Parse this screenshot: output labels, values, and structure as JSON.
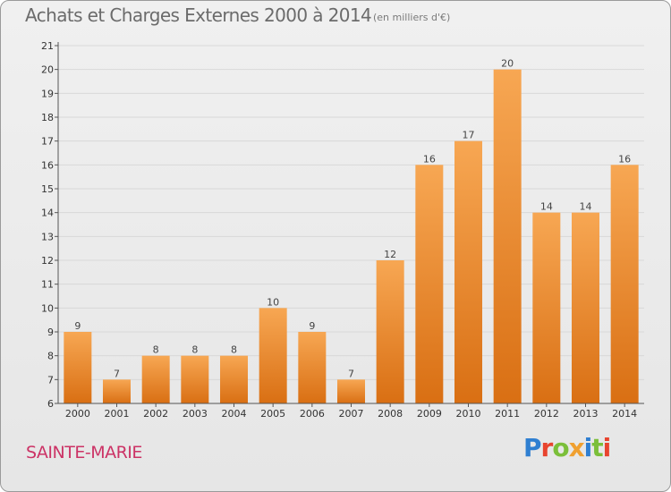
{
  "header": {
    "title": "Achats et Charges Externes 2000 à 2014",
    "unit": "(en milliers d'€)"
  },
  "footer": {
    "commune": "SAINTE-MARIE",
    "logo": "Proxiti"
  },
  "colors": {
    "bar_light": "#f7a753",
    "bar_dark": "#d96f13",
    "grid": "#d8d8d8",
    "title": "#6b6b6b",
    "commune": "#cc3366"
  },
  "chart_data": {
    "type": "bar",
    "categories": [
      "2000",
      "2001",
      "2002",
      "2003",
      "2004",
      "2005",
      "2006",
      "2007",
      "2008",
      "2009",
      "2010",
      "2011",
      "2012",
      "2013",
      "2014"
    ],
    "values": [
      9,
      7,
      8,
      8,
      8,
      10,
      9,
      7,
      12,
      16,
      17,
      20,
      14,
      14,
      16
    ],
    "ylim": [
      6,
      21
    ],
    "yticks": [
      6,
      7,
      8,
      9,
      10,
      11,
      12,
      13,
      14,
      15,
      16,
      17,
      18,
      19,
      20,
      21
    ],
    "grid": true,
    "title": "Achats et Charges Externes 2000 à 2014",
    "xlabel": "",
    "ylabel": ""
  }
}
